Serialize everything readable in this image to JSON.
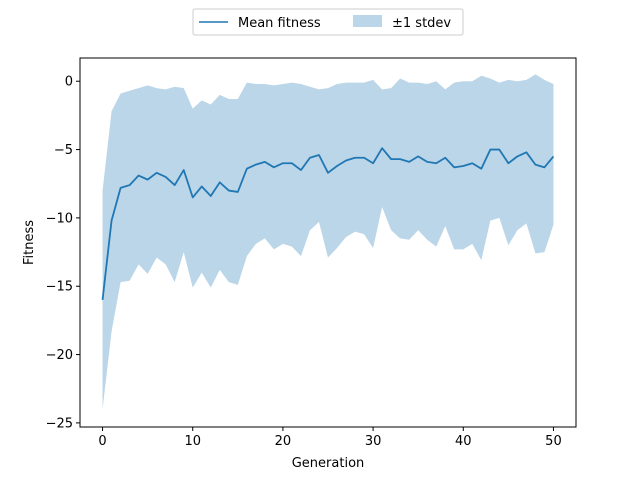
{
  "chart_data": {
    "type": "line",
    "title": "",
    "xlabel": "Generation",
    "ylabel": "Fitness",
    "xlim": [
      -2.5,
      52.5
    ],
    "ylim": [
      -25.3,
      1.7
    ],
    "xticks": [
      0,
      10,
      20,
      30,
      40,
      50
    ],
    "yticks": [
      0,
      -5,
      -10,
      -15,
      -20,
      -25
    ],
    "xtick_labels": [
      "0",
      "10",
      "20",
      "30",
      "40",
      "50"
    ],
    "ytick_labels": [
      "0",
      "−5",
      "−10",
      "−15",
      "−20",
      "−25"
    ],
    "grid": false,
    "legend_position": "top-center",
    "legend": [
      "Mean fitness",
      "±1 stdev"
    ],
    "colors": {
      "line": "#1f77b4",
      "band": "#1f77b4",
      "band_opacity": 0.3
    },
    "x": [
      0,
      1,
      2,
      3,
      4,
      5,
      6,
      7,
      8,
      9,
      10,
      11,
      12,
      13,
      14,
      15,
      16,
      17,
      18,
      19,
      20,
      21,
      22,
      23,
      24,
      25,
      26,
      27,
      28,
      29,
      30,
      31,
      32,
      33,
      34,
      35,
      36,
      37,
      38,
      39,
      40,
      41,
      42,
      43,
      44,
      45,
      46,
      47,
      48,
      49,
      50
    ],
    "series": [
      {
        "name": "Mean fitness",
        "values": [
          -16.0,
          -10.2,
          -7.8,
          -7.6,
          -6.9,
          -7.2,
          -6.7,
          -7.0,
          -7.6,
          -6.5,
          -8.5,
          -7.7,
          -8.4,
          -7.4,
          -8.0,
          -8.1,
          -6.4,
          -6.1,
          -5.9,
          -6.3,
          -6.0,
          -6.0,
          -6.5,
          -5.6,
          -5.4,
          -6.7,
          -6.2,
          -5.8,
          -5.6,
          -5.6,
          -6.0,
          -4.9,
          -5.7,
          -5.7,
          -5.9,
          -5.5,
          -5.9,
          -6.0,
          -5.6,
          -6.3,
          -6.2,
          -6.0,
          -6.4,
          -5.0,
          -5.0,
          -6.0,
          -5.5,
          -5.2,
          -6.1,
          -6.3,
          -5.5
        ]
      },
      {
        "name": "±1 stdev",
        "lower": [
          -24.0,
          -18.3,
          -14.7,
          -14.6,
          -13.4,
          -14.1,
          -12.9,
          -13.4,
          -14.7,
          -12.5,
          -15.1,
          -14.0,
          -15.1,
          -13.8,
          -14.7,
          -14.9,
          -12.8,
          -11.9,
          -11.5,
          -12.3,
          -11.9,
          -12.1,
          -12.8,
          -10.9,
          -10.3,
          -12.9,
          -12.2,
          -11.4,
          -11.0,
          -11.2,
          -12.2,
          -9.2,
          -10.9,
          -11.5,
          -11.6,
          -10.9,
          -11.6,
          -12.1,
          -10.6,
          -12.3,
          -12.3,
          -11.9,
          -13.1,
          -10.2,
          -10.0,
          -12.0,
          -10.9,
          -10.4,
          -12.6,
          -12.5,
          -10.5
        ],
        "upper": [
          -8.0,
          -2.2,
          -0.9,
          -0.7,
          -0.5,
          -0.3,
          -0.5,
          -0.6,
          -0.4,
          -0.5,
          -2.0,
          -1.4,
          -1.7,
          -1.0,
          -1.3,
          -1.3,
          -0.1,
          -0.2,
          -0.2,
          -0.3,
          -0.2,
          -0.1,
          -0.2,
          -0.4,
          -0.6,
          -0.5,
          -0.2,
          -0.1,
          -0.1,
          -0.1,
          0.1,
          -0.6,
          -0.5,
          0.2,
          -0.1,
          -0.1,
          -0.2,
          0.0,
          -0.6,
          -0.1,
          0.0,
          0.0,
          0.4,
          0.2,
          -0.1,
          0.1,
          0.0,
          0.1,
          0.5,
          0.1,
          -0.2
        ]
      }
    ]
  }
}
